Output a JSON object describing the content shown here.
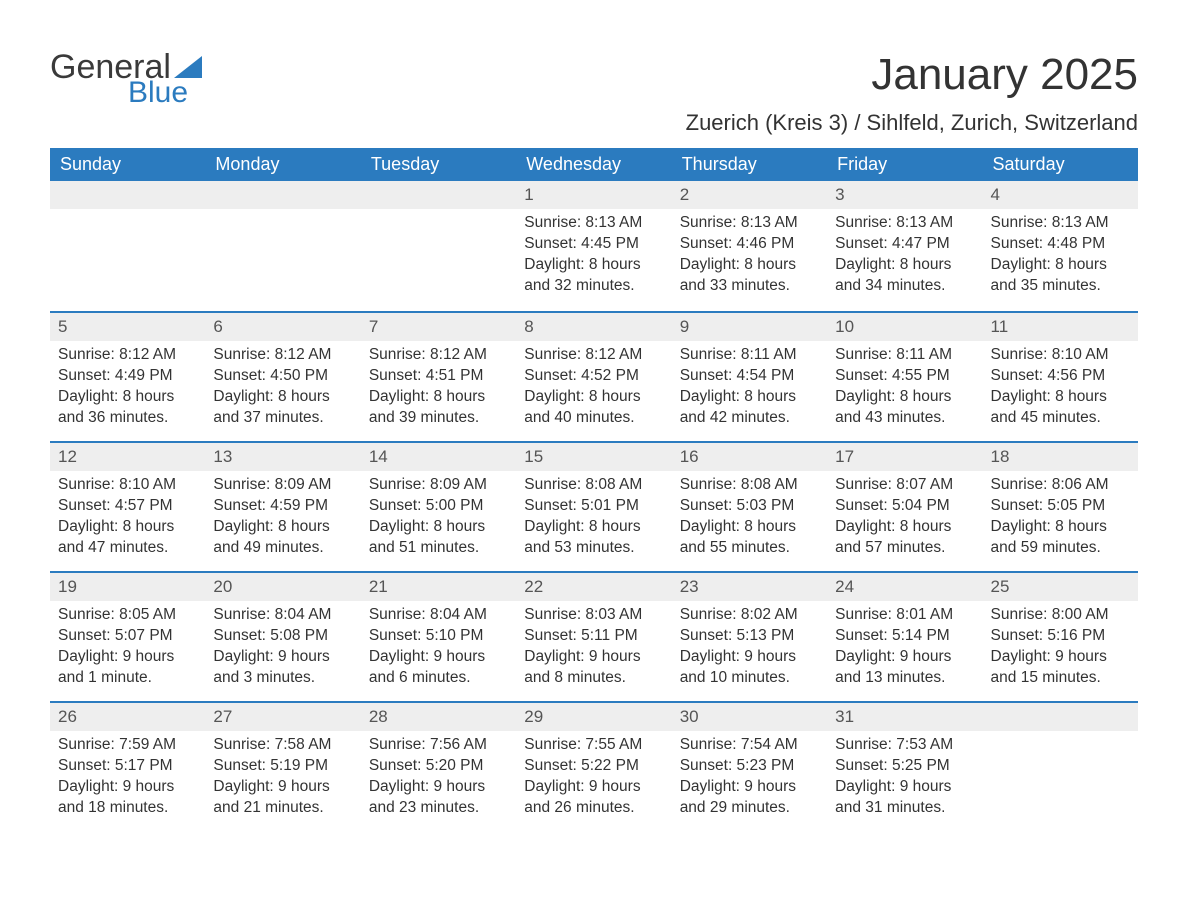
{
  "logo": {
    "text1": "General",
    "text2": "Blue",
    "tri_color": "#2b7bbf"
  },
  "title": "January 2025",
  "location": "Zuerich (Kreis 3) / Sihlfeld, Zurich, Switzerland",
  "colors": {
    "header_bg": "#2b7bbf",
    "header_text": "#ffffff",
    "daynum_bg": "#eeeeee",
    "row_border": "#2b7bbf",
    "body_text": "#333333"
  },
  "day_names": [
    "Sunday",
    "Monday",
    "Tuesday",
    "Wednesday",
    "Thursday",
    "Friday",
    "Saturday"
  ],
  "weeks": [
    [
      null,
      null,
      null,
      {
        "n": "1",
        "sunrise": "8:13 AM",
        "sunset": "4:45 PM",
        "daylight": "8 hours and 32 minutes."
      },
      {
        "n": "2",
        "sunrise": "8:13 AM",
        "sunset": "4:46 PM",
        "daylight": "8 hours and 33 minutes."
      },
      {
        "n": "3",
        "sunrise": "8:13 AM",
        "sunset": "4:47 PM",
        "daylight": "8 hours and 34 minutes."
      },
      {
        "n": "4",
        "sunrise": "8:13 AM",
        "sunset": "4:48 PM",
        "daylight": "8 hours and 35 minutes."
      }
    ],
    [
      {
        "n": "5",
        "sunrise": "8:12 AM",
        "sunset": "4:49 PM",
        "daylight": "8 hours and 36 minutes."
      },
      {
        "n": "6",
        "sunrise": "8:12 AM",
        "sunset": "4:50 PM",
        "daylight": "8 hours and 37 minutes."
      },
      {
        "n": "7",
        "sunrise": "8:12 AM",
        "sunset": "4:51 PM",
        "daylight": "8 hours and 39 minutes."
      },
      {
        "n": "8",
        "sunrise": "8:12 AM",
        "sunset": "4:52 PM",
        "daylight": "8 hours and 40 minutes."
      },
      {
        "n": "9",
        "sunrise": "8:11 AM",
        "sunset": "4:54 PM",
        "daylight": "8 hours and 42 minutes."
      },
      {
        "n": "10",
        "sunrise": "8:11 AM",
        "sunset": "4:55 PM",
        "daylight": "8 hours and 43 minutes."
      },
      {
        "n": "11",
        "sunrise": "8:10 AM",
        "sunset": "4:56 PM",
        "daylight": "8 hours and 45 minutes."
      }
    ],
    [
      {
        "n": "12",
        "sunrise": "8:10 AM",
        "sunset": "4:57 PM",
        "daylight": "8 hours and 47 minutes."
      },
      {
        "n": "13",
        "sunrise": "8:09 AM",
        "sunset": "4:59 PM",
        "daylight": "8 hours and 49 minutes."
      },
      {
        "n": "14",
        "sunrise": "8:09 AM",
        "sunset": "5:00 PM",
        "daylight": "8 hours and 51 minutes."
      },
      {
        "n": "15",
        "sunrise": "8:08 AM",
        "sunset": "5:01 PM",
        "daylight": "8 hours and 53 minutes."
      },
      {
        "n": "16",
        "sunrise": "8:08 AM",
        "sunset": "5:03 PM",
        "daylight": "8 hours and 55 minutes."
      },
      {
        "n": "17",
        "sunrise": "8:07 AM",
        "sunset": "5:04 PM",
        "daylight": "8 hours and 57 minutes."
      },
      {
        "n": "18",
        "sunrise": "8:06 AM",
        "sunset": "5:05 PM",
        "daylight": "8 hours and 59 minutes."
      }
    ],
    [
      {
        "n": "19",
        "sunrise": "8:05 AM",
        "sunset": "5:07 PM",
        "daylight": "9 hours and 1 minute."
      },
      {
        "n": "20",
        "sunrise": "8:04 AM",
        "sunset": "5:08 PM",
        "daylight": "9 hours and 3 minutes."
      },
      {
        "n": "21",
        "sunrise": "8:04 AM",
        "sunset": "5:10 PM",
        "daylight": "9 hours and 6 minutes."
      },
      {
        "n": "22",
        "sunrise": "8:03 AM",
        "sunset": "5:11 PM",
        "daylight": "9 hours and 8 minutes."
      },
      {
        "n": "23",
        "sunrise": "8:02 AM",
        "sunset": "5:13 PM",
        "daylight": "9 hours and 10 minutes."
      },
      {
        "n": "24",
        "sunrise": "8:01 AM",
        "sunset": "5:14 PM",
        "daylight": "9 hours and 13 minutes."
      },
      {
        "n": "25",
        "sunrise": "8:00 AM",
        "sunset": "5:16 PM",
        "daylight": "9 hours and 15 minutes."
      }
    ],
    [
      {
        "n": "26",
        "sunrise": "7:59 AM",
        "sunset": "5:17 PM",
        "daylight": "9 hours and 18 minutes."
      },
      {
        "n": "27",
        "sunrise": "7:58 AM",
        "sunset": "5:19 PM",
        "daylight": "9 hours and 21 minutes."
      },
      {
        "n": "28",
        "sunrise": "7:56 AM",
        "sunset": "5:20 PM",
        "daylight": "9 hours and 23 minutes."
      },
      {
        "n": "29",
        "sunrise": "7:55 AM",
        "sunset": "5:22 PM",
        "daylight": "9 hours and 26 minutes."
      },
      {
        "n": "30",
        "sunrise": "7:54 AM",
        "sunset": "5:23 PM",
        "daylight": "9 hours and 29 minutes."
      },
      {
        "n": "31",
        "sunrise": "7:53 AM",
        "sunset": "5:25 PM",
        "daylight": "9 hours and 31 minutes."
      },
      null
    ]
  ],
  "labels": {
    "sunrise": "Sunrise: ",
    "sunset": "Sunset: ",
    "daylight": "Daylight: "
  }
}
